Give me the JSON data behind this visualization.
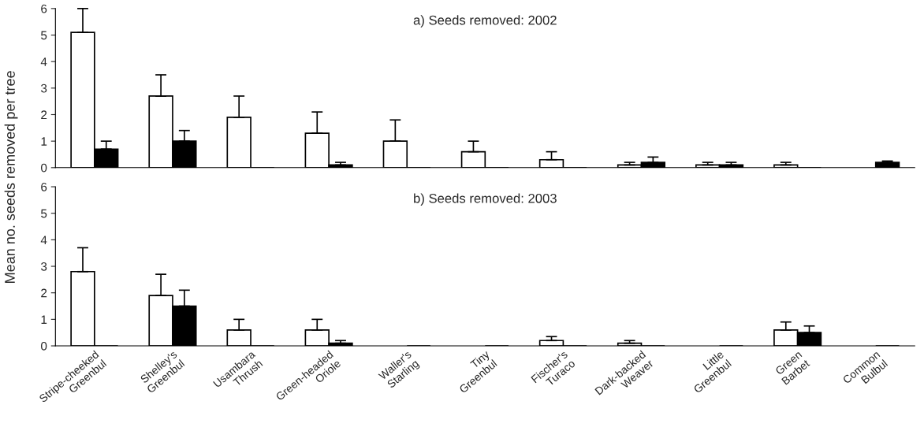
{
  "chart_data": [
    {
      "type": "bar",
      "title": "a) Seeds removed: 2002",
      "ylabel": "Mean no. seeds removed per tree",
      "categories": [
        null,
        null,
        null,
        null,
        null,
        null,
        null,
        null,
        null,
        null,
        null
      ],
      "series": [
        {
          "color": "#ffffff",
          "values": [
            5.1,
            2.7,
            1.9,
            1.3,
            1.0,
            0.6,
            0.3,
            0.1,
            0.1,
            0.1,
            0
          ],
          "errors": [
            [
              5.1,
              6.0
            ],
            [
              2.7,
              3.5
            ],
            [
              1.9,
              2.7
            ],
            [
              1.3,
              2.1
            ],
            [
              1.0,
              1.8
            ],
            [
              0.6,
              1.0
            ],
            [
              0.3,
              0.6
            ],
            [
              0.1,
              0.2
            ],
            [
              0.1,
              0.2
            ],
            [
              0.1,
              0.2
            ],
            null
          ]
        },
        {
          "color": "#000000",
          "values": [
            0.7,
            1.0,
            0,
            0.1,
            0,
            0,
            0,
            0.2,
            0.1,
            0,
            0.2
          ],
          "errors": [
            [
              0.7,
              1.0
            ],
            [
              1.0,
              1.4
            ],
            null,
            [
              0.1,
              0.2
            ],
            null,
            null,
            null,
            [
              0.2,
              0.4
            ],
            [
              0.1,
              0.2
            ],
            null,
            [
              0.2,
              0.25
            ]
          ]
        }
      ],
      "ylim": [
        0,
        6
      ],
      "yticks": [
        0,
        1,
        2,
        3,
        4,
        5,
        6
      ],
      "grid": false,
      "legend": false,
      "tick_labels": "y"
    },
    {
      "type": "bar",
      "title": "b) Seeds removed: 2003",
      "categories": [
        "Stripe-cheeked\nGreenbul",
        "Shelley's\nGreenbul",
        "Usambara\nThrush",
        "Green-headed\nOriole",
        "Waller's\nStarling",
        "Tiny\nGreenbul",
        "Fischer's\nTuraco",
        "Dark-backed\nWeaver",
        "Little\nGreenbul",
        "Green\nBarbet",
        "Common\nBulbul"
      ],
      "series": [
        {
          "color": "#ffffff",
          "values": [
            2.8,
            1.9,
            0.6,
            0.6,
            0,
            0,
            0.2,
            0.1,
            0,
            0.6,
            0
          ],
          "errors": [
            [
              2.8,
              3.7
            ],
            [
              1.9,
              2.7
            ],
            [
              0.6,
              1.0
            ],
            [
              0.6,
              1.0
            ],
            null,
            null,
            [
              0.2,
              0.35
            ],
            [
              0.1,
              0.2
            ],
            null,
            [
              0.6,
              0.9
            ],
            null
          ]
        },
        {
          "color": "#000000",
          "values": [
            0,
            1.5,
            0,
            0.1,
            0,
            0,
            0,
            0,
            0,
            0.5,
            0
          ],
          "errors": [
            null,
            [
              1.5,
              2.1
            ],
            null,
            [
              0.1,
              0.2
            ],
            null,
            null,
            null,
            null,
            null,
            [
              0.5,
              0.75
            ],
            null
          ]
        }
      ],
      "ylim": [
        0,
        6
      ],
      "yticks": [
        0,
        1,
        2,
        3,
        4,
        5,
        6
      ],
      "grid": false,
      "legend": false
    }
  ]
}
